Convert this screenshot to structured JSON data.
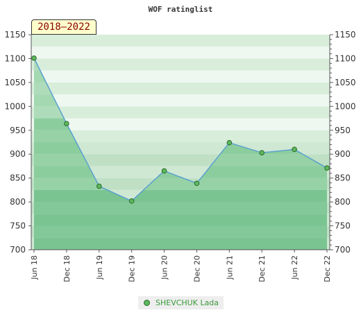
{
  "chart_data": {
    "type": "area",
    "title": "WOF ratinglist",
    "period_label": "2018–2022",
    "categories": [
      "Jun 18",
      "Dec 18",
      "Jun 19",
      "Dec 19",
      "Jun 20",
      "Dec 20",
      "Jun 21",
      "Dec 21",
      "Jun 22",
      "Dec 22"
    ],
    "series": [
      {
        "name": "SHEVCHUK Lada",
        "values": [
          1101,
          964,
          833,
          802,
          865,
          839,
          924,
          903,
          910,
          871
        ]
      }
    ],
    "ylim": [
      700,
      1150
    ],
    "yticks": [
      700,
      750,
      800,
      850,
      900,
      950,
      1000,
      1050,
      1100,
      1150
    ],
    "colors": {
      "line": "#5aa0d0",
      "marker_fill": "#5cb85c",
      "marker_stroke": "#2d6a2d",
      "legend_text": "#3a9a3a"
    }
  }
}
